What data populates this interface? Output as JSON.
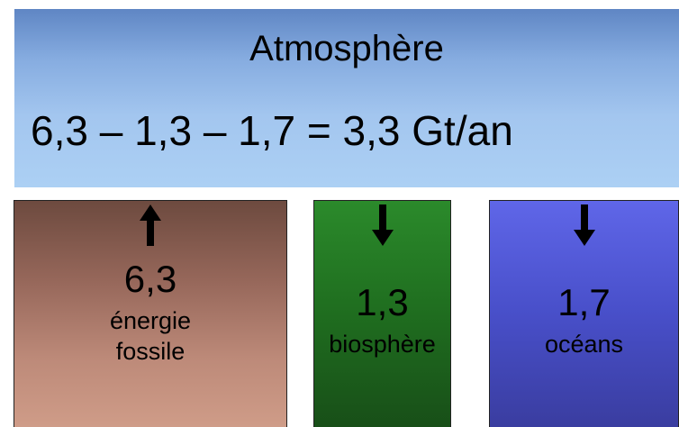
{
  "atmosphere": {
    "title": "Atmosphère",
    "equation": "6,3 – 1,3 – 1,7 = 3,3 Gt/an"
  },
  "sources": [
    {
      "value": "6,3",
      "label_line1": "énergie",
      "label_line2": "fossile",
      "direction": "up",
      "color": "#b07f6f"
    },
    {
      "value": "1,3",
      "label": "biosphère",
      "direction": "down",
      "color": "#237a23"
    },
    {
      "value": "1,7",
      "label": "océans",
      "direction": "down",
      "color": "#4a50cc"
    }
  ],
  "colors": {
    "atmosphere": "#a3c6ef",
    "fossil": "#b07f6f",
    "biosphere": "#237a23",
    "oceans": "#4a50cc"
  }
}
